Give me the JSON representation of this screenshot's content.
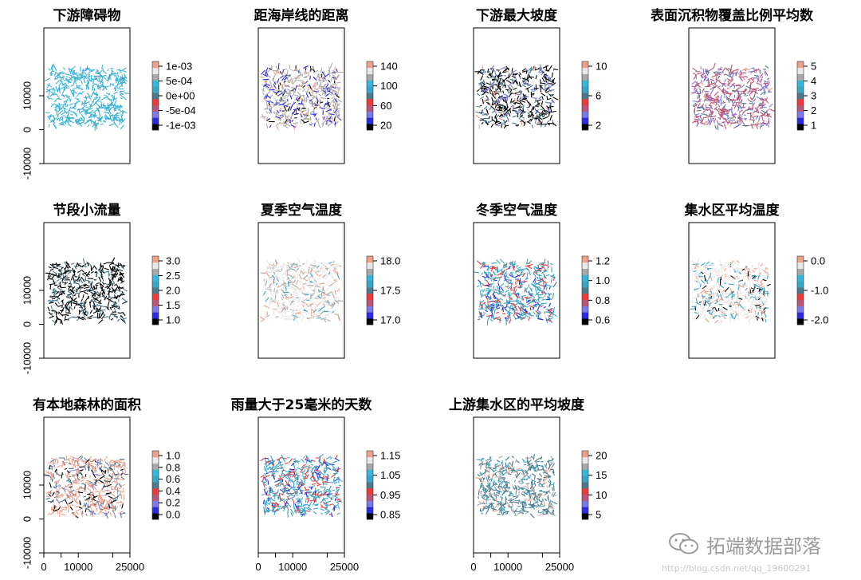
{
  "palette": [
    "#000000",
    "#2a2ae6",
    "#7a7ae8",
    "#bb5577",
    "#ef3a3a",
    "#4a7a8c",
    "#37a7c7",
    "#39b6dd",
    "#a9a9a9",
    "#e8e8e8",
    "#f0a088"
  ],
  "chart_data": [
    {
      "type": "scatter",
      "title": "下游障碍物",
      "xlim": [
        0,
        25000
      ],
      "ylim": [
        -10000,
        30000
      ],
      "xticks": [],
      "yticks": [
        -10000,
        0,
        10000
      ],
      "legend": [
        "1e-03",
        "5e-04",
        "0e+00",
        "-5e-04",
        "-1e-03"
      ],
      "legend_placement": "right",
      "dominant_colors": [
        "#39b6dd",
        "#37a7c7"
      ]
    },
    {
      "type": "scatter",
      "title": "距海岸线的距离",
      "xlim": [
        0,
        25000
      ],
      "ylim": [
        -10000,
        30000
      ],
      "xticks": [],
      "yticks": [],
      "legend": [
        "140",
        "100",
        "60",
        "20"
      ],
      "legend_placement": "right",
      "dominant_colors": [
        "#a9a9a9",
        "#2a2ae6",
        "#f0a088",
        "#000000"
      ]
    },
    {
      "type": "scatter",
      "title": "下游最大坡度",
      "xlim": [
        0,
        25000
      ],
      "ylim": [
        -10000,
        30000
      ],
      "xticks": [],
      "yticks": [],
      "legend": [
        "10",
        "6",
        "2"
      ],
      "legend_placement": "right",
      "dominant_colors": [
        "#000000",
        "#4a7a8c",
        "#7a7ae8",
        "#f0a088"
      ]
    },
    {
      "type": "scatter",
      "title": "表面沉积物覆盖比例平均数",
      "xlim": [
        0,
        25000
      ],
      "ylim": [
        -10000,
        30000
      ],
      "xticks": [],
      "yticks": [],
      "legend": [
        "5",
        "4",
        "3",
        "2",
        "1"
      ],
      "legend_placement": "right",
      "dominant_colors": [
        "#bb5577",
        "#7a7ae8",
        "#4a7a8c",
        "#f0a088"
      ]
    },
    {
      "type": "scatter",
      "title": "节段小流量",
      "xlim": [
        0,
        25000
      ],
      "ylim": [
        -10000,
        30000
      ],
      "xticks": [],
      "yticks": [
        -10000,
        0,
        10000
      ],
      "legend": [
        "3.0",
        "2.5",
        "2.0",
        "1.5",
        "1.0"
      ],
      "legend_placement": "right",
      "dominant_colors": [
        "#000000",
        "#4a7a8c"
      ]
    },
    {
      "type": "scatter",
      "title": "夏季空气温度",
      "xlim": [
        0,
        25000
      ],
      "ylim": [
        -10000,
        30000
      ],
      "xticks": [],
      "yticks": [],
      "legend": [
        "18.0",
        "17.5",
        "17.0"
      ],
      "legend_placement": "right",
      "dominant_colors": [
        "#e8e8e8",
        "#a9a9a9",
        "#f0a088",
        "#37a7c7"
      ]
    },
    {
      "type": "scatter",
      "title": "冬季空气温度",
      "xlim": [
        0,
        25000
      ],
      "ylim": [
        -10000,
        30000
      ],
      "xticks": [],
      "yticks": [],
      "legend": [
        "1.2",
        "1.0",
        "0.8",
        "0.6"
      ],
      "legend_placement": "right",
      "dominant_colors": [
        "#37a7c7",
        "#ef3a3a",
        "#2a2ae6",
        "#4a7a8c"
      ]
    },
    {
      "type": "scatter",
      "title": "集水区平均温度",
      "xlim": [
        0,
        25000
      ],
      "ylim": [
        -10000,
        30000
      ],
      "xticks": [],
      "yticks": [],
      "legend": [
        "0.0",
        "-1.0",
        "-2.0"
      ],
      "legend_placement": "right",
      "dominant_colors": [
        "#e8e8e8",
        "#37a7c7",
        "#f0a088",
        "#000000"
      ]
    },
    {
      "type": "scatter",
      "title": "有本地森林的面积",
      "xlim": [
        0,
        25000
      ],
      "ylim": [
        -10000,
        30000
      ],
      "xticks": [
        0,
        10000,
        25000
      ],
      "yticks": [
        -10000,
        0,
        10000
      ],
      "legend": [
        "1.0",
        "0.8",
        "0.6",
        "0.4",
        "0.2",
        "0.0"
      ],
      "legend_placement": "right",
      "dominant_colors": [
        "#f0a088",
        "#4a7a8c",
        "#000000",
        "#7a7ae8"
      ]
    },
    {
      "type": "scatter",
      "title": "雨量大于25毫米的天数",
      "xlim": [
        0,
        25000
      ],
      "ylim": [
        -10000,
        30000
      ],
      "xticks": [
        0,
        10000,
        25000
      ],
      "yticks": [],
      "legend": [
        "1.15",
        "1.05",
        "0.95",
        "0.85"
      ],
      "legend_placement": "right",
      "dominant_colors": [
        "#37a7c7",
        "#ef3a3a",
        "#2a2ae6",
        "#4a7a8c"
      ]
    },
    {
      "type": "scatter",
      "title": "上游集水区的平均坡度",
      "xlim": [
        0,
        25000
      ],
      "ylim": [
        -10000,
        30000
      ],
      "xticks": [
        0,
        10000,
        25000
      ],
      "yticks": [],
      "legend": [
        "20",
        "15",
        "10",
        "5"
      ],
      "legend_placement": "right",
      "dominant_colors": [
        "#4a7a8c",
        "#37a7c7",
        "#a9a9a9",
        "#f0a088"
      ]
    }
  ],
  "watermark": {
    "text": "拓端数据部落",
    "icon": "wechat-icon"
  },
  "credit": "http://blog.csdn.net/qq_19600291"
}
